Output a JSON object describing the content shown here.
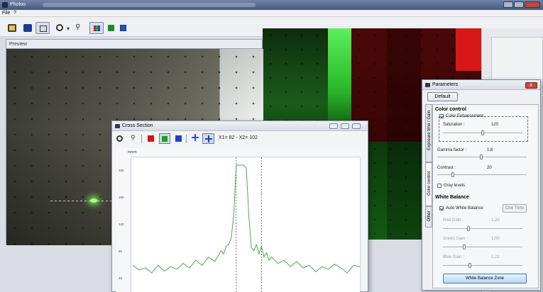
{
  "window": {
    "title": "Photoo"
  },
  "menu": {
    "file": "File",
    "help": "?"
  },
  "preview": {
    "title": "Preview"
  },
  "cross_section": {
    "title": "Cross Section",
    "readout": "X1= 82 - X2= 102",
    "unit_label": "mmm",
    "y_ticks": [
      "200",
      "160",
      "120",
      "80",
      "40"
    ],
    "line_color": "#4daa4d",
    "chart_data": {
      "type": "line",
      "x": [
        0,
        5,
        10,
        15,
        20,
        25,
        30,
        35,
        40,
        45,
        50,
        55,
        60,
        65,
        70,
        72,
        74,
        76,
        78,
        80,
        82,
        84,
        86,
        88,
        90,
        92,
        94,
        96,
        98,
        100,
        102,
        104,
        106,
        108,
        110,
        115,
        120,
        125,
        130,
        135,
        140,
        145,
        150,
        155,
        160,
        165,
        170,
        175,
        180
      ],
      "values": [
        42,
        35,
        38,
        30,
        42,
        33,
        40,
        36,
        45,
        38,
        50,
        42,
        55,
        48,
        65,
        60,
        72,
        75,
        85,
        120,
        200,
        200,
        200,
        200,
        195,
        120,
        70,
        65,
        75,
        60,
        72,
        55,
        62,
        50,
        55,
        45,
        50,
        40,
        48,
        38,
        42,
        32,
        40,
        36,
        44,
        38,
        30,
        42,
        40
      ],
      "ylim": [
        0,
        210
      ],
      "cursor_x": [
        82,
        102
      ]
    }
  },
  "parameters": {
    "title": "Parameters",
    "default_button": "Default",
    "tabs": [
      "Exposure time / Gain",
      "Color control",
      "Other"
    ],
    "color_control": {
      "heading": "Color control",
      "color_enhancement": "Color Enhancement",
      "saturation_label": "Saturation :",
      "saturation_value": "120",
      "gamma_label": "Gamma factor :",
      "gamma_value": "1,8",
      "contrast_label": "Contrast :",
      "contrast_value": "20",
      "gray_levels": "Gray levels"
    },
    "white_balance": {
      "heading": "White Balance",
      "auto": "Auto White Balance",
      "one_time": "One Time",
      "red_label": "Red Gain :",
      "red_value": "1,20",
      "green_label": "Green Gain :",
      "green_value": "1,00",
      "blue_label": "Blue Gain :",
      "blue_value": "1,22",
      "zone_button": "White Balance Zone"
    }
  }
}
